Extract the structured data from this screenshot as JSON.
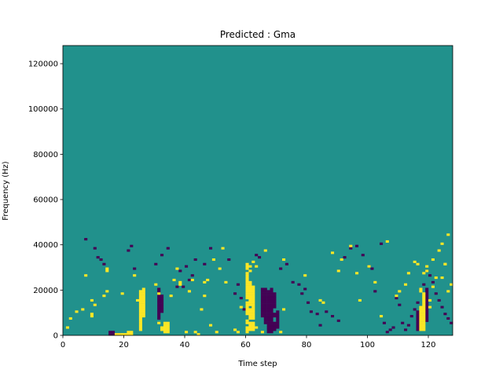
{
  "chart_data": {
    "type": "heatmap",
    "title": "Predicted : Gma",
    "xlabel": "Time step",
    "ylabel": "Frequency (Hz)",
    "xlim": [
      0,
      128
    ],
    "ylim": [
      0,
      128000
    ],
    "x_ticks": [
      0,
      20,
      40,
      60,
      80,
      100,
      120
    ],
    "y_ticks": [
      0,
      20000,
      40000,
      60000,
      80000,
      100000,
      120000
    ],
    "grid": false,
    "legend": "none",
    "colors": {
      "background": "#21918c",
      "high": "#fde725",
      "low": "#440154"
    },
    "high_cells": [
      [
        25,
        2
      ],
      [
        25,
        3
      ],
      [
        25,
        4
      ],
      [
        25,
        5
      ],
      [
        25,
        6
      ],
      [
        25,
        7
      ],
      [
        25,
        8
      ],
      [
        25,
        9
      ],
      [
        25,
        10
      ],
      [
        25,
        11
      ],
      [
        25,
        12
      ],
      [
        25,
        13
      ],
      [
        25,
        14
      ],
      [
        25,
        15
      ],
      [
        25,
        16
      ],
      [
        25,
        17
      ],
      [
        25,
        18
      ],
      [
        25,
        19
      ],
      [
        26,
        8
      ],
      [
        26,
        9
      ],
      [
        26,
        10
      ],
      [
        26,
        11
      ],
      [
        26,
        12
      ],
      [
        26,
        13
      ],
      [
        26,
        14
      ],
      [
        26,
        15
      ],
      [
        26,
        16
      ],
      [
        26,
        17
      ],
      [
        26,
        18
      ],
      [
        26,
        19
      ],
      [
        26,
        20
      ],
      [
        33,
        1
      ],
      [
        33,
        2
      ],
      [
        33,
        3
      ],
      [
        33,
        4
      ],
      [
        33,
        5
      ],
      [
        34,
        1
      ],
      [
        34,
        2
      ],
      [
        34,
        3
      ],
      [
        34,
        4
      ],
      [
        34,
        5
      ],
      [
        60,
        1
      ],
      [
        60,
        2
      ],
      [
        60,
        3
      ],
      [
        60,
        5
      ],
      [
        60,
        6
      ],
      [
        60,
        9
      ],
      [
        60,
        10
      ],
      [
        60,
        11
      ],
      [
        60,
        12
      ],
      [
        60,
        13
      ],
      [
        60,
        14
      ],
      [
        60,
        16
      ],
      [
        60,
        17
      ],
      [
        60,
        18
      ],
      [
        60,
        19
      ],
      [
        60,
        20
      ],
      [
        60,
        21
      ],
      [
        60,
        22
      ],
      [
        60,
        23
      ],
      [
        60,
        24
      ],
      [
        60,
        25
      ],
      [
        60,
        26
      ],
      [
        60,
        27
      ],
      [
        61,
        2
      ],
      [
        61,
        3
      ],
      [
        61,
        4
      ],
      [
        61,
        5
      ],
      [
        61,
        7
      ],
      [
        61,
        8
      ],
      [
        61,
        9
      ],
      [
        61,
        10
      ],
      [
        61,
        11
      ],
      [
        61,
        13
      ],
      [
        61,
        14
      ],
      [
        61,
        15
      ],
      [
        61,
        16
      ],
      [
        61,
        17
      ],
      [
        61,
        18
      ],
      [
        61,
        19
      ],
      [
        61,
        20
      ],
      [
        61,
        21
      ],
      [
        61,
        22
      ],
      [
        61,
        23
      ],
      [
        62,
        2
      ],
      [
        62,
        3
      ],
      [
        62,
        4
      ],
      [
        62,
        5
      ],
      [
        62,
        7
      ],
      [
        62,
        8
      ],
      [
        62,
        9
      ],
      [
        62,
        10
      ],
      [
        62,
        11
      ],
      [
        62,
        12
      ],
      [
        62,
        13
      ],
      [
        62,
        14
      ],
      [
        62,
        15
      ],
      [
        62,
        16
      ],
      [
        62,
        17
      ],
      [
        62,
        18
      ],
      [
        62,
        19
      ],
      [
        62,
        20
      ],
      [
        62,
        21
      ],
      [
        117,
        2
      ],
      [
        117,
        3
      ],
      [
        117,
        4
      ],
      [
        117,
        5
      ],
      [
        117,
        6
      ],
      [
        117,
        7
      ],
      [
        117,
        8
      ],
      [
        117,
        9
      ],
      [
        117,
        10
      ],
      [
        117,
        11
      ],
      [
        117,
        12
      ],
      [
        118,
        2
      ],
      [
        118,
        3
      ],
      [
        118,
        4
      ],
      [
        118,
        5
      ],
      [
        118,
        6
      ],
      [
        118,
        7
      ],
      [
        118,
        8
      ],
      [
        118,
        9
      ],
      [
        118,
        10
      ],
      [
        118,
        11
      ],
      [
        118,
        12
      ],
      [
        118,
        13
      ],
      [
        118,
        14
      ],
      [
        118,
        15
      ],
      [
        118,
        16
      ],
      [
        118,
        17
      ],
      [
        118,
        18
      ],
      [
        17,
        0
      ],
      [
        18,
        0
      ],
      [
        19,
        0
      ],
      [
        20,
        0
      ],
      [
        21,
        0
      ],
      [
        22,
        0
      ],
      [
        21,
        1
      ],
      [
        22,
        1
      ],
      [
        31,
        5
      ],
      [
        32,
        2
      ],
      [
        32,
        3
      ],
      [
        40,
        1
      ],
      [
        43,
        1
      ],
      [
        44,
        0
      ],
      [
        48,
        4
      ],
      [
        50,
        1
      ],
      [
        56,
        2
      ],
      [
        57,
        1
      ],
      [
        63,
        3
      ],
      [
        65,
        1
      ],
      [
        71,
        1
      ],
      [
        9,
        8
      ],
      [
        9,
        9
      ],
      [
        7,
        26
      ],
      [
        14,
        28
      ],
      [
        14,
        29
      ],
      [
        23,
        26
      ],
      [
        24,
        15
      ],
      [
        38,
        22
      ],
      [
        38,
        23
      ],
      [
        41,
        19
      ],
      [
        42,
        24
      ],
      [
        46,
        23
      ],
      [
        53,
        23
      ],
      [
        60,
        31
      ],
      [
        60,
        30
      ],
      [
        60,
        29
      ],
      [
        61,
        30
      ],
      [
        61,
        28
      ],
      [
        62,
        32
      ],
      [
        63,
        30
      ],
      [
        72,
        33
      ],
      [
        91,
        33
      ],
      [
        100,
        30
      ],
      [
        110,
        19
      ],
      [
        113,
        27
      ],
      [
        116,
        31
      ],
      [
        117,
        20
      ],
      [
        117,
        19
      ],
      [
        119,
        30
      ],
      [
        120,
        15
      ],
      [
        120,
        12
      ],
      [
        121,
        21
      ],
      [
        124,
        25
      ],
      [
        125,
        31
      ],
      [
        126,
        19
      ],
      [
        1,
        3
      ],
      [
        2,
        7
      ],
      [
        4,
        10
      ],
      [
        6,
        11
      ],
      [
        9,
        15
      ],
      [
        10,
        13
      ],
      [
        13,
        17
      ],
      [
        14,
        19
      ],
      [
        19,
        18
      ],
      [
        30,
        22
      ],
      [
        31,
        18
      ],
      [
        35,
        17
      ],
      [
        36,
        24
      ],
      [
        37,
        29
      ],
      [
        45,
        11
      ],
      [
        46,
        17
      ],
      [
        47,
        24
      ],
      [
        49,
        33
      ],
      [
        51,
        29
      ],
      [
        52,
        38
      ],
      [
        58,
        12
      ],
      [
        66,
        37
      ],
      [
        72,
        11
      ],
      [
        79,
        26
      ],
      [
        84,
        15
      ],
      [
        85,
        14
      ],
      [
        88,
        36
      ],
      [
        90,
        28
      ],
      [
        94,
        39
      ],
      [
        96,
        27
      ],
      [
        97,
        15
      ],
      [
        102,
        23
      ],
      [
        104,
        8
      ],
      [
        106,
        41
      ],
      [
        109,
        17
      ],
      [
        112,
        22
      ],
      [
        115,
        32
      ],
      [
        118,
        27
      ],
      [
        119,
        28
      ],
      [
        121,
        33
      ],
      [
        122,
        25
      ],
      [
        123,
        37
      ],
      [
        124,
        40
      ],
      [
        125,
        31
      ],
      [
        127,
        22
      ],
      [
        126,
        44
      ]
    ],
    "low_cells": [
      [
        15,
        0
      ],
      [
        16,
        0
      ],
      [
        17,
        0
      ],
      [
        18,
        0
      ],
      [
        15,
        1
      ],
      [
        16,
        1
      ],
      [
        67,
        1
      ],
      [
        67,
        2
      ],
      [
        67,
        3
      ],
      [
        67,
        4
      ],
      [
        67,
        5
      ],
      [
        67,
        6
      ],
      [
        67,
        7
      ],
      [
        67,
        8
      ],
      [
        67,
        9
      ],
      [
        67,
        10
      ],
      [
        67,
        11
      ],
      [
        67,
        12
      ],
      [
        67,
        13
      ],
      [
        67,
        14
      ],
      [
        67,
        15
      ],
      [
        67,
        16
      ],
      [
        67,
        17
      ],
      [
        67,
        18
      ],
      [
        67,
        19
      ],
      [
        68,
        1
      ],
      [
        68,
        2
      ],
      [
        68,
        3
      ],
      [
        68,
        4
      ],
      [
        68,
        5
      ],
      [
        68,
        6
      ],
      [
        68,
        7
      ],
      [
        68,
        8
      ],
      [
        68,
        9
      ],
      [
        68,
        10
      ],
      [
        68,
        11
      ],
      [
        68,
        12
      ],
      [
        68,
        13
      ],
      [
        68,
        14
      ],
      [
        68,
        15
      ],
      [
        68,
        16
      ],
      [
        68,
        17
      ],
      [
        68,
        18
      ],
      [
        68,
        19
      ],
      [
        68,
        20
      ],
      [
        66,
        5
      ],
      [
        66,
        6
      ],
      [
        66,
        7
      ],
      [
        66,
        8
      ],
      [
        66,
        9
      ],
      [
        66,
        10
      ],
      [
        66,
        11
      ],
      [
        66,
        12
      ],
      [
        66,
        13
      ],
      [
        66,
        14
      ],
      [
        66,
        15
      ],
      [
        66,
        16
      ],
      [
        66,
        17
      ],
      [
        66,
        18
      ],
      [
        66,
        19
      ],
      [
        66,
        20
      ],
      [
        69,
        2
      ],
      [
        69,
        3
      ],
      [
        69,
        4
      ],
      [
        69,
        5
      ],
      [
        69,
        8
      ],
      [
        69,
        9
      ],
      [
        69,
        12
      ],
      [
        69,
        13
      ],
      [
        69,
        14
      ],
      [
        69,
        15
      ],
      [
        69,
        16
      ],
      [
        69,
        17
      ],
      [
        69,
        18
      ],
      [
        31,
        7
      ],
      [
        31,
        8
      ],
      [
        31,
        9
      ],
      [
        31,
        10
      ],
      [
        31,
        11
      ],
      [
        31,
        12
      ],
      [
        31,
        13
      ],
      [
        31,
        14
      ],
      [
        31,
        15
      ],
      [
        31,
        16
      ],
      [
        31,
        17
      ],
      [
        31,
        18
      ],
      [
        31,
        19
      ],
      [
        31,
        20
      ],
      [
        32,
        10
      ],
      [
        32,
        11
      ],
      [
        32,
        12
      ],
      [
        32,
        13
      ],
      [
        32,
        14
      ],
      [
        32,
        15
      ],
      [
        32,
        16
      ],
      [
        32,
        17
      ],
      [
        70,
        3
      ],
      [
        70,
        4
      ],
      [
        70,
        5
      ],
      [
        70,
        6
      ],
      [
        70,
        7
      ],
      [
        70,
        8
      ],
      [
        70,
        9
      ],
      [
        70,
        10
      ],
      [
        65,
        8
      ],
      [
        65,
        9
      ],
      [
        65,
        10
      ],
      [
        65,
        11
      ],
      [
        65,
        12
      ],
      [
        65,
        13
      ],
      [
        65,
        14
      ],
      [
        65,
        15
      ],
      [
        65,
        16
      ],
      [
        65,
        17
      ],
      [
        65,
        18
      ],
      [
        65,
        19
      ],
      [
        65,
        20
      ],
      [
        116,
        2
      ],
      [
        116,
        3
      ],
      [
        116,
        4
      ],
      [
        116,
        5
      ],
      [
        116,
        6
      ],
      [
        116,
        7
      ],
      [
        116,
        8
      ],
      [
        116,
        9
      ],
      [
        116,
        10
      ],
      [
        119,
        6
      ],
      [
        119,
        7
      ],
      [
        119,
        8
      ],
      [
        119,
        9
      ],
      [
        119,
        10
      ],
      [
        119,
        11
      ],
      [
        119,
        12
      ],
      [
        119,
        13
      ],
      [
        119,
        14
      ],
      [
        119,
        15
      ],
      [
        119,
        16
      ],
      [
        119,
        17
      ],
      [
        119,
        18
      ],
      [
        119,
        19
      ],
      [
        119,
        20
      ],
      [
        7,
        42
      ],
      [
        10,
        38
      ],
      [
        11,
        34
      ],
      [
        12,
        33
      ],
      [
        13,
        31
      ],
      [
        21,
        37
      ],
      [
        22,
        39
      ],
      [
        23,
        29
      ],
      [
        30,
        31
      ],
      [
        32,
        35
      ],
      [
        34,
        38
      ],
      [
        37,
        21
      ],
      [
        38,
        28
      ],
      [
        39,
        21
      ],
      [
        40,
        30
      ],
      [
        41,
        24
      ],
      [
        42,
        26
      ],
      [
        43,
        33
      ],
      [
        46,
        31
      ],
      [
        48,
        38
      ],
      [
        54,
        33
      ],
      [
        56,
        18
      ],
      [
        57,
        22
      ],
      [
        58,
        16
      ],
      [
        59,
        11
      ],
      [
        63,
        35
      ],
      [
        64,
        34
      ],
      [
        71,
        29
      ],
      [
        73,
        31
      ],
      [
        75,
        23
      ],
      [
        77,
        22
      ],
      [
        78,
        18
      ],
      [
        79,
        20
      ],
      [
        80,
        14
      ],
      [
        81,
        10
      ],
      [
        83,
        9
      ],
      [
        84,
        4
      ],
      [
        86,
        10
      ],
      [
        88,
        8
      ],
      [
        90,
        6
      ],
      [
        92,
        34
      ],
      [
        94,
        38
      ],
      [
        96,
        39
      ],
      [
        98,
        35
      ],
      [
        100,
        30
      ],
      [
        101,
        29
      ],
      [
        102,
        19
      ],
      [
        104,
        40
      ],
      [
        105,
        5
      ],
      [
        106,
        1
      ],
      [
        107,
        2
      ],
      [
        108,
        3
      ],
      [
        109,
        16
      ],
      [
        110,
        13
      ],
      [
        111,
        5
      ],
      [
        112,
        2
      ],
      [
        113,
        4
      ],
      [
        114,
        8
      ],
      [
        115,
        11
      ],
      [
        116,
        14
      ],
      [
        117,
        20
      ],
      [
        118,
        22
      ],
      [
        119,
        28
      ],
      [
        120,
        26
      ],
      [
        121,
        23
      ],
      [
        122,
        18
      ],
      [
        123,
        15
      ],
      [
        124,
        12
      ],
      [
        125,
        9
      ],
      [
        126,
        7
      ],
      [
        127,
        5
      ]
    ]
  }
}
